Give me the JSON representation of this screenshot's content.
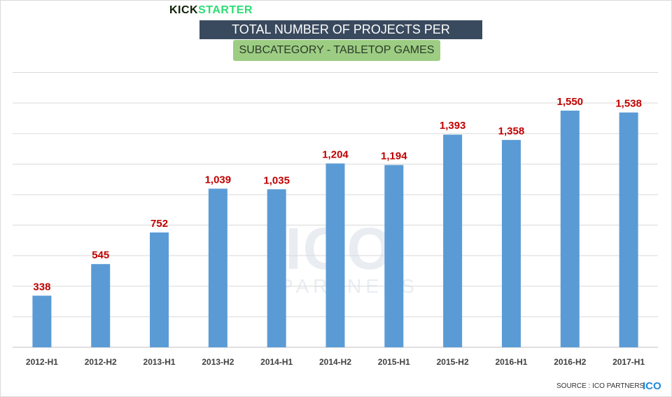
{
  "header": {
    "logo_part1": "KICK",
    "logo_part2": "STARTER",
    "title": "TOTAL NUMBER OF PROJECTS PER SEMESTER",
    "subtitle": "SUBCATEGORY - TABLETOP GAMES"
  },
  "watermark": {
    "big": "ICO",
    "small": "PARTNERS"
  },
  "footer": {
    "source": "SOURCE : ICO PARTNERS",
    "brand": "ICO"
  },
  "colors": {
    "bar": "#5b9bd5",
    "label": "#c00000",
    "grid": "#d9d9d9",
    "title_bg": "#3a4a5e",
    "subtitle_bg": "#9ccd83"
  },
  "chart_data": {
    "type": "bar",
    "title": "TOTAL NUMBER OF PROJECTS PER SEMESTER",
    "subtitle": "SUBCATEGORY - TABLETOP GAMES",
    "categories": [
      "2012-H1",
      "2012-H2",
      "2013-H1",
      "2013-H2",
      "2014-H1",
      "2014-H2",
      "2015-H1",
      "2015-H2",
      "2016-H1",
      "2016-H2",
      "2017-H1"
    ],
    "values": [
      338,
      545,
      752,
      1039,
      1035,
      1204,
      1194,
      1393,
      1358,
      1550,
      1538
    ],
    "value_labels": [
      "338",
      "545",
      "752",
      "1,039",
      "1,035",
      "1,204",
      "1,194",
      "1,393",
      "1,358",
      "1,550",
      "1,538"
    ],
    "ylim": [
      0,
      1800
    ],
    "grid": true,
    "legend": "none",
    "xlabel": "",
    "ylabel": ""
  }
}
